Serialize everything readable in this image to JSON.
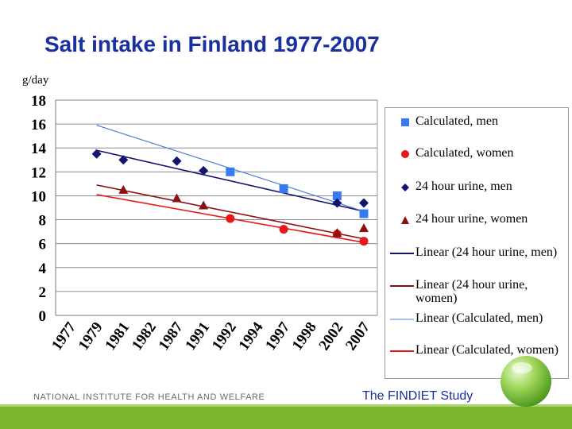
{
  "slide": {
    "title": "Salt intake in Finland 1977-2007",
    "unit": "g/day",
    "footer_left": "NATIONAL INSTITUTE FOR HEALTH AND WELFARE",
    "footer_right": "The FINDIET Study"
  },
  "colors": {
    "title": "#1a2fa0",
    "calc_men": "#3a7af0",
    "calc_women": "#e8181a",
    "urine_men": "#141470",
    "urine_women": "#8b1010",
    "trend_urine_men": "#141470",
    "trend_urine_women": "#8b1010",
    "trend_calc_men": "#4a7fd0",
    "trend_calc_women": "#e8181a",
    "footer_bar": "#7cb82f"
  },
  "chart_data": {
    "type": "scatter",
    "title": "Salt intake in Finland 1977-2007",
    "ylabel": "g/day",
    "xlabel": "",
    "ylim": [
      0,
      18
    ],
    "yticks": [
      "0",
      "2",
      "4",
      "6",
      "8",
      "10",
      "12",
      "14",
      "16",
      "18"
    ],
    "categories": [
      "1977",
      "1979",
      "1981",
      "1982",
      "1987",
      "1991",
      "1992",
      "1994",
      "1997",
      "1998",
      "2002",
      "2007"
    ],
    "grid": true,
    "legend_position": "right",
    "series": [
      {
        "name": "Calculated, men",
        "marker": "square",
        "points": [
          [
            "1992",
            12.0
          ],
          [
            "1997",
            10.6
          ],
          [
            "2002",
            10.0
          ],
          [
            "2007",
            8.5
          ]
        ]
      },
      {
        "name": "Calculated, women",
        "marker": "circle",
        "points": [
          [
            "1992",
            8.1
          ],
          [
            "1997",
            7.2
          ],
          [
            "2002",
            6.8
          ],
          [
            "2007",
            6.2
          ]
        ]
      },
      {
        "name": "24 hour urine, men",
        "marker": "diamond",
        "points": [
          [
            "1979",
            13.5
          ],
          [
            "1981",
            13.0
          ],
          [
            "1987",
            12.9
          ],
          [
            "1991",
            12.1
          ],
          [
            "2002",
            9.4
          ],
          [
            "2007",
            9.4
          ]
        ]
      },
      {
        "name": "24 hour urine, women",
        "marker": "triangle",
        "points": [
          [
            "1981",
            10.5
          ],
          [
            "1987",
            9.8
          ],
          [
            "1991",
            9.2
          ],
          [
            "2002",
            6.9
          ],
          [
            "2007",
            7.3
          ]
        ]
      }
    ],
    "trendlines": [
      {
        "name": "Linear (24 hour urine, men)",
        "from": [
          "1979",
          13.8
        ],
        "to": [
          "2007",
          8.7
        ]
      },
      {
        "name": "Linear (24 hour urine, women)",
        "from": [
          "1979",
          10.9
        ],
        "to": [
          "2007",
          6.4
        ]
      },
      {
        "name": "Linear (Calculated, men)",
        "from": [
          "1979",
          15.9
        ],
        "to": [
          "2007",
          8.7
        ]
      },
      {
        "name": "Linear (Calculated, women)",
        "from": [
          "1979",
          10.1
        ],
        "to": [
          "2007",
          6.1
        ]
      }
    ]
  },
  "legend": {
    "items": [
      {
        "label": "Calculated, men",
        "symbol": "square"
      },
      {
        "label": "Calculated, women",
        "symbol": "circle"
      },
      {
        "label": "24 hour urine, men",
        "symbol": "diamond"
      },
      {
        "label": "24 hour urine, women",
        "symbol": "triangle"
      },
      {
        "label": "Linear (24 hour urine, men)",
        "symbol": "line"
      },
      {
        "label": "Linear (24 hour urine, women)",
        "symbol": "line"
      },
      {
        "label": "Linear (Calculated, men)",
        "symbol": "line"
      },
      {
        "label": "Linear (Calculated, women)",
        "symbol": "line"
      }
    ]
  }
}
